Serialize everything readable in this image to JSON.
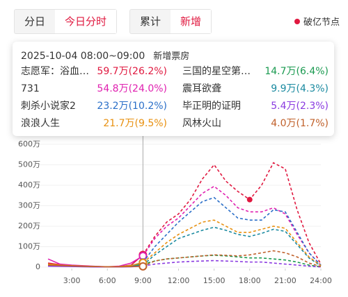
{
  "tabs": [
    [
      "分日",
      "今日分时"
    ],
    [
      "累计",
      "新增"
    ]
  ],
  "legend": "破亿节点",
  "tooltip": {
    "title": "2025-10-04  08:00~09:00",
    "subtitle": "新增票房",
    "labels": [
      "59.7万(26.2%)",
      "14.7万(6.4%)",
      "54.8万(24.0%)",
      "9.9万(4.3%)",
      "23.2万(10.2%)",
      "5.4万(2.3%)",
      "21.7万(9.5%)",
      "4.0万(1.7%)"
    ]
  },
  "chart_data": {
    "type": "line",
    "x": [
      1,
      2,
      3,
      4,
      5,
      6,
      7,
      8,
      9,
      10,
      11,
      12,
      13,
      14,
      15,
      16,
      17,
      18,
      19,
      20,
      21,
      22,
      23,
      24
    ],
    "xlim": [
      0,
      24
    ],
    "xticks": [
      {
        "value": 3,
        "label": "3:00"
      },
      {
        "value": 6,
        "label": "6:00"
      },
      {
        "value": 9,
        "label": "9:00"
      },
      {
        "value": 12,
        "label": "12:00"
      },
      {
        "value": 15,
        "label": "15:00"
      },
      {
        "value": 18,
        "label": "18:00"
      },
      {
        "value": 21,
        "label": "21:00"
      },
      {
        "value": 24,
        "label": "24:00"
      }
    ],
    "ylim": [
      0,
      600
    ],
    "yticks": [
      0,
      {
        "value": 100,
        "label": "100万"
      },
      {
        "value": 200,
        "label": "200万"
      },
      {
        "value": 300,
        "label": "300万"
      },
      {
        "value": 400,
        "label": "400万"
      },
      {
        "value": 500,
        "label": "500万"
      },
      {
        "value": 600,
        "label": "600万"
      }
    ],
    "crosshair_x": 9,
    "milestone_x": 18,
    "series": [
      {
        "name": "志愿军：浴血…",
        "color": "#e0183f",
        "values": [
          20,
          12,
          8,
          5,
          3,
          2,
          3,
          10,
          59.7,
          150,
          220,
          260,
          330,
          430,
          500,
          420,
          370,
          330,
          400,
          510,
          480,
          280,
          120,
          15
        ]
      },
      {
        "name": "三国的星空第…",
        "color": "#1a9a50",
        "values": [
          8,
          6,
          4,
          3,
          2,
          1,
          2,
          5,
          14.7,
          30,
          40,
          45,
          50,
          55,
          58,
          55,
          50,
          45,
          45,
          40,
          35,
          25,
          10,
          2
        ]
      },
      {
        "name": "731",
        "color": "#e020b0",
        "values": [
          40,
          15,
          10,
          7,
          4,
          2,
          5,
          20,
          54.8,
          140,
          200,
          240,
          300,
          360,
          395,
          350,
          290,
          270,
          270,
          290,
          260,
          160,
          70,
          10
        ]
      },
      {
        "name": "震耳欲聋",
        "color": "#1a8aa0",
        "values": [
          8,
          6,
          4,
          3,
          2,
          1,
          2,
          4,
          9.9,
          60,
          100,
          140,
          160,
          180,
          195,
          180,
          160,
          150,
          165,
          185,
          175,
          110,
          45,
          6
        ]
      },
      {
        "name": "刺杀小说家2",
        "color": "#2a6fc8",
        "values": [
          10,
          8,
          6,
          4,
          3,
          2,
          3,
          8,
          23.2,
          100,
          160,
          220,
          270,
          320,
          340,
          290,
          240,
          230,
          230,
          280,
          270,
          170,
          70,
          10
        ]
      },
      {
        "name": "毕正明的证明",
        "color": "#8a3ae0",
        "values": [
          5,
          4,
          3,
          2,
          1,
          1,
          1,
          2,
          5.4,
          15,
          20,
          25,
          28,
          30,
          32,
          30,
          28,
          25,
          25,
          20,
          15,
          10,
          5,
          1
        ]
      },
      {
        "name": "浪浪人生",
        "color": "#e8900f",
        "values": [
          15,
          10,
          7,
          5,
          3,
          2,
          3,
          8,
          21.7,
          70,
          120,
          160,
          190,
          220,
          230,
          200,
          170,
          170,
          185,
          200,
          190,
          120,
          50,
          8
        ]
      },
      {
        "name": "风林火山",
        "color": "#c0602a",
        "values": [
          10,
          8,
          6,
          4,
          3,
          2,
          2,
          3,
          4.0,
          30,
          40,
          45,
          50,
          55,
          60,
          58,
          55,
          60,
          70,
          80,
          70,
          50,
          20,
          3
        ]
      }
    ]
  }
}
